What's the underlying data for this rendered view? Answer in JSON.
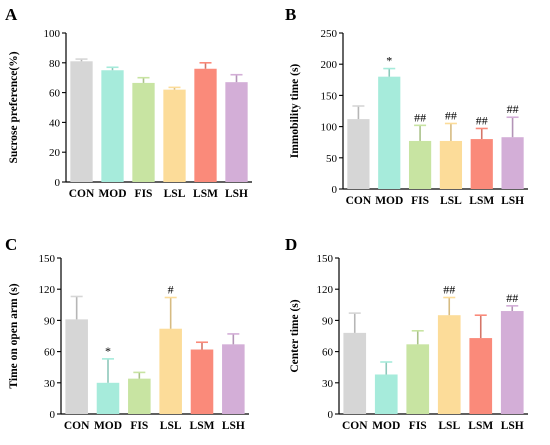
{
  "colors": {
    "CON": "#d6d6d6",
    "MOD": "#a6ebdb",
    "FIS": "#c8e4a2",
    "LSL": "#fcdc99",
    "LSM": "#fa8a7a",
    "LSH": "#d3aed7"
  },
  "chart_data": [
    {
      "panel": "A",
      "type": "bar",
      "categories": [
        "CON",
        "MOD",
        "FIS",
        "LSL",
        "LSM",
        "LSH"
      ],
      "values": [
        81,
        75,
        66.5,
        62,
        76,
        67
      ],
      "errors": [
        1.5,
        2,
        3.5,
        1.5,
        4,
        5
      ],
      "significance": [
        "",
        "",
        "",
        "",
        "",
        ""
      ],
      "ylabel": "Sucrose preference(%)",
      "ylim": [
        0,
        100
      ],
      "yticks": [
        0,
        20,
        40,
        60,
        80,
        100
      ]
    },
    {
      "panel": "B",
      "type": "bar",
      "categories": [
        "CON",
        "MOD",
        "FIS",
        "LSL",
        "LSM",
        "LSH"
      ],
      "values": [
        112,
        180,
        77,
        77,
        80,
        83
      ],
      "errors": [
        21,
        13,
        25,
        28,
        17,
        32
      ],
      "significance": [
        "",
        "*",
        "##",
        "##",
        "##",
        "##"
      ],
      "ylabel": "Immobility time (s)",
      "ylim": [
        0,
        250
      ],
      "yticks": [
        0,
        50,
        100,
        150,
        200,
        250
      ]
    },
    {
      "panel": "C",
      "type": "bar",
      "categories": [
        "CON",
        "MOD",
        "FIS",
        "LSL",
        "LSM",
        "LSH"
      ],
      "values": [
        91,
        30,
        34,
        82,
        62,
        67
      ],
      "errors": [
        22,
        23,
        6,
        30,
        7,
        10
      ],
      "significance": [
        "",
        "*",
        "",
        "#",
        "",
        ""
      ],
      "ylabel": "Time on open arm (s)",
      "ylim": [
        0,
        150
      ],
      "yticks": [
        0,
        30,
        60,
        90,
        120,
        150
      ]
    },
    {
      "panel": "D",
      "type": "bar",
      "categories": [
        "CON",
        "MOD",
        "FIS",
        "LSL",
        "LSM",
        "LSH"
      ],
      "values": [
        78,
        38,
        67,
        95,
        73,
        99
      ],
      "errors": [
        19,
        12,
        13,
        17,
        22,
        5
      ],
      "significance": [
        "",
        "",
        "",
        "##",
        "",
        "##"
      ],
      "ylabel": "Center time (s)",
      "ylim": [
        0,
        150
      ],
      "yticks": [
        0,
        30,
        60,
        90,
        120,
        150
      ]
    }
  ]
}
